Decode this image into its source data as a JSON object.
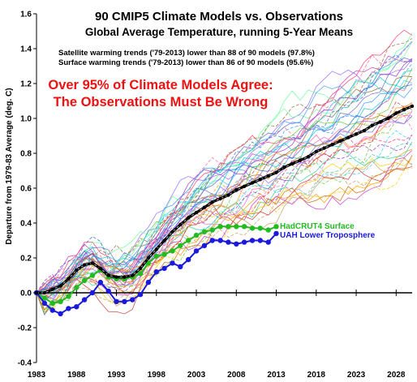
{
  "chart_data": {
    "type": "line",
    "title": "90 CMIP5 Climate Models vs. Observations",
    "subtitle": "Global Average Temperature, running 5-Year Means",
    "annotations": [
      "Satellite warming trends ('79-2013) lower than 88 of 90 models (97.8%)",
      "Surface warming trends ('79-2013) lower than 86 of 90 models (95.6%)"
    ],
    "headline": [
      "Over 95% of Climate Models Agree:",
      "The Observations Must Be Wrong"
    ],
    "ylabel": "Departure from 1979-83 Average (deg. C)",
    "xlabel": "",
    "xlim": [
      1983,
      2030
    ],
    "ylim": [
      -0.4,
      1.6
    ],
    "x_ticks": [
      "1983",
      "1988",
      "1993",
      "1998",
      "2003",
      "2008",
      "2013",
      "2018",
      "2023",
      "2028"
    ],
    "y_ticks": [
      "-0.4",
      "-0.2",
      "0.0",
      "0.2",
      "0.4",
      "0.6",
      "0.8",
      "1.0",
      "1.2",
      "1.4",
      "1.6"
    ],
    "grid": false,
    "colors": {
      "headline": "#ee1111",
      "hadcrut": "#22bb22",
      "uah": "#1a1adc",
      "model_mean": "#000000"
    },
    "series": [
      {
        "name": "HadCRUT4 Surface",
        "x": [
          1983,
          1984,
          1985,
          1986,
          1987,
          1988,
          1989,
          1990,
          1991,
          1992,
          1993,
          1994,
          1995,
          1996,
          1997,
          1998,
          1999,
          2000,
          2001,
          2002,
          2003,
          2004,
          2005,
          2006,
          2007,
          2008,
          2009,
          2010,
          2011,
          2012,
          2013
        ],
        "values": [
          0.0,
          -0.03,
          -0.06,
          -0.05,
          -0.02,
          0.03,
          0.07,
          0.1,
          0.13,
          0.09,
          0.08,
          0.08,
          0.09,
          0.11,
          0.17,
          0.21,
          0.22,
          0.24,
          0.27,
          0.3,
          0.33,
          0.35,
          0.36,
          0.38,
          0.38,
          0.38,
          0.38,
          0.37,
          0.37,
          0.36,
          0.38
        ]
      },
      {
        "name": "UAH Lower Troposphere",
        "x": [
          1983,
          1984,
          1985,
          1986,
          1987,
          1988,
          1989,
          1990,
          1991,
          1992,
          1993,
          1994,
          1995,
          1996,
          1997,
          1998,
          1999,
          2000,
          2001,
          2002,
          2003,
          2004,
          2005,
          2006,
          2007,
          2008,
          2009,
          2010,
          2011,
          2012,
          2013
        ],
        "values": [
          0.0,
          -0.06,
          -0.1,
          -0.12,
          -0.09,
          -0.08,
          -0.04,
          0.0,
          0.06,
          0.01,
          -0.05,
          -0.05,
          -0.04,
          -0.01,
          0.06,
          0.12,
          0.14,
          0.17,
          0.15,
          0.19,
          0.24,
          0.27,
          0.3,
          0.3,
          0.29,
          0.28,
          0.29,
          0.3,
          0.3,
          0.29,
          0.34
        ]
      },
      {
        "name": "Model Mean",
        "x": [
          1983,
          1984,
          1985,
          1986,
          1987,
          1988,
          1989,
          1990,
          1991,
          1992,
          1993,
          1994,
          1995,
          1996,
          1997,
          1998,
          1999,
          2000,
          2001,
          2002,
          2003,
          2004,
          2005,
          2006,
          2007,
          2008,
          2009,
          2010,
          2011,
          2012,
          2013,
          2014,
          2015,
          2016,
          2017,
          2018,
          2019,
          2020,
          2021,
          2022,
          2023,
          2024,
          2025,
          2026,
          2027,
          2028,
          2029,
          2030
        ],
        "values": [
          0.0,
          0.0,
          0.02,
          0.04,
          0.08,
          0.13,
          0.16,
          0.17,
          0.14,
          0.1,
          0.09,
          0.09,
          0.1,
          0.14,
          0.2,
          0.25,
          0.3,
          0.35,
          0.39,
          0.43,
          0.46,
          0.49,
          0.52,
          0.54,
          0.56,
          0.59,
          0.61,
          0.63,
          0.65,
          0.67,
          0.69,
          0.72,
          0.74,
          0.76,
          0.78,
          0.81,
          0.83,
          0.85,
          0.87,
          0.89,
          0.91,
          0.93,
          0.96,
          0.98,
          1.0,
          1.03,
          1.05,
          1.07
        ]
      }
    ]
  }
}
